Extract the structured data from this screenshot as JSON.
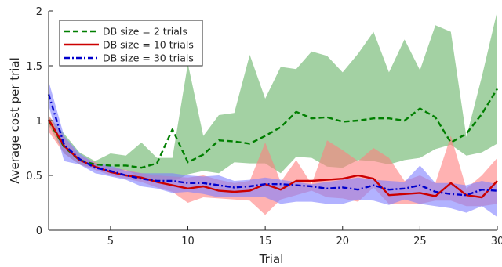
{
  "chart_data": {
    "type": "line",
    "title": "",
    "xlabel": "Trial",
    "ylabel": "Average cost per trial",
    "xlim": [
      1,
      30
    ],
    "ylim": [
      0,
      2
    ],
    "xticks": [
      5,
      10,
      15,
      20,
      25,
      30
    ],
    "yticks": [
      0,
      0.5,
      1,
      1.5,
      2
    ],
    "grid": false,
    "legend_position": "top-left",
    "x": [
      1,
      2,
      3,
      4,
      5,
      6,
      7,
      8,
      9,
      10,
      11,
      12,
      13,
      14,
      15,
      16,
      17,
      18,
      19,
      20,
      21,
      22,
      23,
      24,
      25,
      26,
      27,
      28,
      29,
      30
    ],
    "series": [
      {
        "name": "DB size = 2 trials",
        "color": "#007f00",
        "band_color": "#66b266",
        "dash": "dashed",
        "values": [
          1.0,
          0.76,
          0.64,
          0.6,
          0.59,
          0.59,
          0.57,
          0.61,
          0.92,
          0.62,
          0.69,
          0.82,
          0.81,
          0.79,
          0.86,
          0.94,
          1.08,
          1.02,
          1.03,
          0.99,
          1.0,
          1.02,
          1.02,
          1.0,
          1.11,
          1.03,
          0.8,
          0.88,
          1.06,
          1.29
        ],
        "upper": [
          1.04,
          0.88,
          0.71,
          0.63,
          0.7,
          0.68,
          0.8,
          0.66,
          0.66,
          1.52,
          0.86,
          1.05,
          1.07,
          1.6,
          1.2,
          1.49,
          1.47,
          1.63,
          1.59,
          1.44,
          1.61,
          1.81,
          1.44,
          1.74,
          1.46,
          1.87,
          1.81,
          0.85,
          1.4,
          2.0
        ],
        "lower": [
          0.96,
          0.7,
          0.6,
          0.57,
          0.54,
          0.55,
          0.48,
          0.45,
          0.44,
          0.51,
          0.54,
          0.52,
          0.62,
          0.61,
          0.61,
          0.52,
          0.67,
          0.66,
          0.58,
          0.57,
          0.64,
          0.63,
          0.6,
          0.64,
          0.66,
          0.74,
          0.78,
          0.68,
          0.71,
          0.79
        ]
      },
      {
        "name": "DB size = 10 trials",
        "color": "#cc0000",
        "band_color": "#ff7f7f",
        "dash": "solid",
        "values": [
          1.01,
          0.77,
          0.64,
          0.58,
          0.53,
          0.5,
          0.48,
          0.44,
          0.41,
          0.38,
          0.4,
          0.36,
          0.35,
          0.36,
          0.42,
          0.37,
          0.45,
          0.45,
          0.46,
          0.47,
          0.5,
          0.47,
          0.32,
          0.33,
          0.34,
          0.31,
          0.43,
          0.32,
          0.3,
          0.45
        ],
        "upper": [
          1.05,
          0.85,
          0.68,
          0.62,
          0.57,
          0.55,
          0.52,
          0.5,
          0.49,
          0.48,
          0.5,
          0.46,
          0.43,
          0.45,
          0.8,
          0.44,
          0.64,
          0.42,
          0.82,
          0.73,
          0.63,
          0.75,
          0.66,
          0.45,
          0.5,
          0.43,
          0.86,
          0.38,
          0.5,
          0.66
        ],
        "lower": [
          0.9,
          0.7,
          0.6,
          0.55,
          0.5,
          0.47,
          0.44,
          0.39,
          0.35,
          0.25,
          0.3,
          0.29,
          0.28,
          0.27,
          0.14,
          0.28,
          0.32,
          0.36,
          0.3,
          0.29,
          0.26,
          0.39,
          0.24,
          0.24,
          0.24,
          0.27,
          0.27,
          0.22,
          0.22,
          0.24
        ]
      },
      {
        "name": "DB size = 30 trials",
        "color": "#0000cc",
        "band_color": "#7f7fff",
        "dash": "dashdot",
        "values": [
          1.24,
          0.78,
          0.65,
          0.57,
          0.54,
          0.5,
          0.47,
          0.45,
          0.45,
          0.43,
          0.43,
          0.41,
          0.39,
          0.4,
          0.42,
          0.42,
          0.41,
          0.4,
          0.38,
          0.39,
          0.37,
          0.41,
          0.37,
          0.38,
          0.41,
          0.35,
          0.33,
          0.32,
          0.37,
          0.36
        ],
        "upper": [
          1.36,
          0.86,
          0.7,
          0.61,
          0.59,
          0.54,
          0.52,
          0.52,
          0.52,
          0.5,
          0.49,
          0.5,
          0.45,
          0.46,
          0.48,
          0.46,
          0.44,
          0.42,
          0.44,
          0.46,
          0.48,
          0.46,
          0.45,
          0.44,
          0.59,
          0.43,
          0.43,
          0.41,
          0.45,
          0.42
        ],
        "lower": [
          1.14,
          0.63,
          0.6,
          0.52,
          0.49,
          0.46,
          0.4,
          0.38,
          0.34,
          0.35,
          0.33,
          0.3,
          0.3,
          0.3,
          0.3,
          0.24,
          0.26,
          0.26,
          0.24,
          0.24,
          0.28,
          0.27,
          0.23,
          0.28,
          0.24,
          0.22,
          0.2,
          0.16,
          0.22,
          0.12
        ]
      }
    ]
  }
}
